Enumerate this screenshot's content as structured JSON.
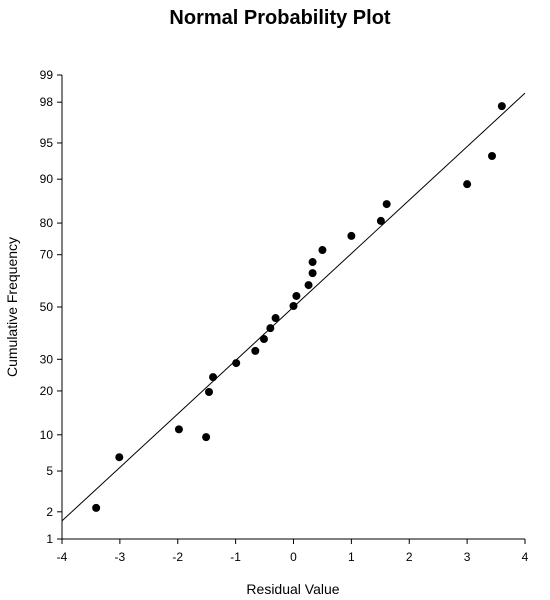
{
  "chart_data": {
    "type": "probability",
    "title": "Normal Probability Plot",
    "x_label": "Residual Value",
    "y_label": "Cumulative Frequency",
    "yscale": "normal-probability",
    "xlim": [
      -4,
      4
    ],
    "xticks": [
      -4,
      -3,
      -2,
      -1,
      0,
      1,
      2,
      3,
      4
    ],
    "ylim": [
      1,
      99
    ],
    "yticks": [
      1,
      2,
      5,
      10,
      20,
      30,
      50,
      70,
      80,
      90,
      95,
      98,
      99
    ],
    "color": "#000000",
    "x": [
      -3.41,
      -3.01,
      -1.98,
      -1.51,
      -1.46,
      -1.39,
      -0.99,
      -0.66,
      -0.51,
      -0.4,
      -0.31,
      0.0,
      0.05,
      0.26,
      0.33,
      0.33,
      0.5,
      1.0,
      1.51,
      1.61,
      3.0,
      3.43,
      3.6
    ],
    "values": [
      2.2,
      6.6,
      11.0,
      9.6,
      19.7,
      24.1,
      28.7,
      33.0,
      37.4,
      41.6,
      45.6,
      50.4,
      54.4,
      58.7,
      63.3,
      67.4,
      71.6,
      76.2,
      80.6,
      84.9,
      89.1,
      93.5,
      97.8
    ],
    "fit_line": {
      "x": [
        -4,
        4
      ],
      "values": [
        1.6,
        98.4
      ]
    }
  }
}
